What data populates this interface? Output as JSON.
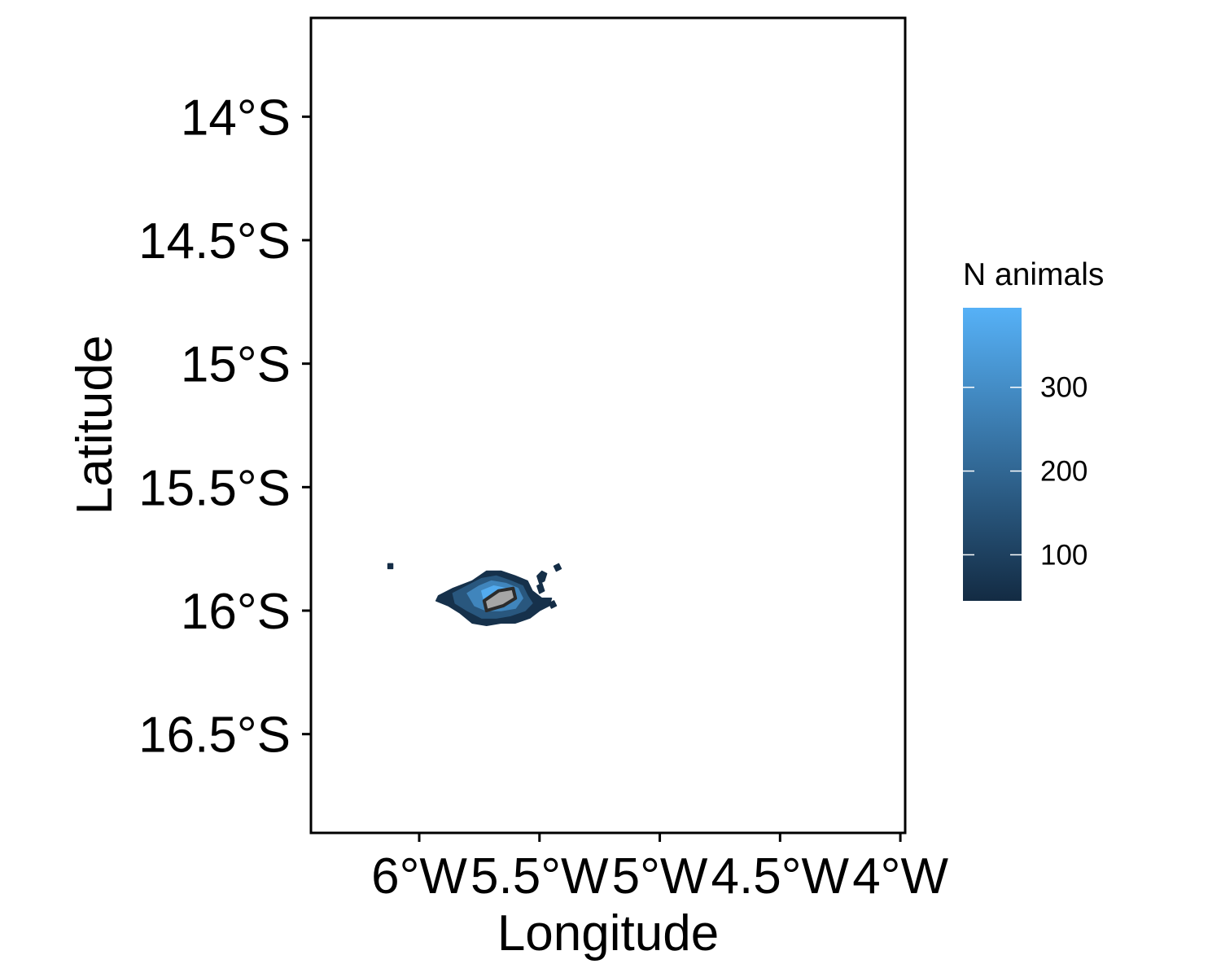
{
  "chart_data": {
    "type": "heatmap",
    "title": "",
    "xlabel": "Longitude",
    "ylabel": "Latitude",
    "xlim": [
      -6.45,
      -3.98
    ],
    "ylim": [
      -16.9,
      -13.6
    ],
    "x_ticks": [
      {
        "value": -6.0,
        "label": "6°W"
      },
      {
        "value": -5.5,
        "label": "5.5°W"
      },
      {
        "value": -5.0,
        "label": "5°W"
      },
      {
        "value": -4.5,
        "label": "4.5°W"
      },
      {
        "value": -4.0,
        "label": "4°W"
      }
    ],
    "y_ticks": [
      {
        "value": -14.0,
        "label": "14°S"
      },
      {
        "value": -14.5,
        "label": "14.5°S"
      },
      {
        "value": -15.0,
        "label": "15°S"
      },
      {
        "value": -15.5,
        "label": "15.5°S"
      },
      {
        "value": -16.0,
        "label": "16°S"
      },
      {
        "value": -16.5,
        "label": "16.5°S"
      }
    ],
    "legend": {
      "title": "N animals",
      "position": "right",
      "min": 45,
      "max": 395,
      "breaks": [
        {
          "value": 100,
          "label": "100"
        },
        {
          "value": 200,
          "label": "200"
        },
        {
          "value": 300,
          "label": "300"
        }
      ],
      "color_low": "#132B43",
      "color_high": "#56B1F7"
    },
    "density_regions": [
      {
        "value": 60,
        "polygon": [
          [
            -5.92,
            -15.94
          ],
          [
            -5.86,
            -15.91
          ],
          [
            -5.78,
            -15.88
          ],
          [
            -5.72,
            -15.84
          ],
          [
            -5.66,
            -15.84
          ],
          [
            -5.6,
            -15.86
          ],
          [
            -5.55,
            -15.88
          ],
          [
            -5.53,
            -15.92
          ],
          [
            -5.49,
            -15.95
          ],
          [
            -5.45,
            -15.95
          ],
          [
            -5.46,
            -15.98
          ],
          [
            -5.5,
            -16.0
          ],
          [
            -5.54,
            -16.03
          ],
          [
            -5.6,
            -16.05
          ],
          [
            -5.66,
            -16.05
          ],
          [
            -5.72,
            -16.06
          ],
          [
            -5.78,
            -16.05
          ],
          [
            -5.83,
            -16.01
          ],
          [
            -5.88,
            -15.98
          ],
          [
            -5.93,
            -15.96
          ]
        ]
      },
      {
        "value": 160,
        "polygon": [
          [
            -5.86,
            -15.93
          ],
          [
            -5.8,
            -15.9
          ],
          [
            -5.74,
            -15.87
          ],
          [
            -5.68,
            -15.86
          ],
          [
            -5.62,
            -15.88
          ],
          [
            -5.57,
            -15.9
          ],
          [
            -5.55,
            -15.94
          ],
          [
            -5.53,
            -15.97
          ],
          [
            -5.56,
            -16.0
          ],
          [
            -5.62,
            -16.02
          ],
          [
            -5.68,
            -16.03
          ],
          [
            -5.74,
            -16.03
          ],
          [
            -5.8,
            -16.0
          ],
          [
            -5.85,
            -15.97
          ]
        ]
      },
      {
        "value": 280,
        "polygon": [
          [
            -5.8,
            -15.93
          ],
          [
            -5.75,
            -15.9
          ],
          [
            -5.7,
            -15.88
          ],
          [
            -5.64,
            -15.89
          ],
          [
            -5.59,
            -15.91
          ],
          [
            -5.57,
            -15.95
          ],
          [
            -5.6,
            -15.99
          ],
          [
            -5.66,
            -16.0
          ],
          [
            -5.72,
            -16.0
          ],
          [
            -5.77,
            -15.98
          ]
        ]
      },
      {
        "value": 380,
        "polygon": [
          [
            -5.74,
            -15.92
          ],
          [
            -5.69,
            -15.9
          ],
          [
            -5.64,
            -15.91
          ],
          [
            -5.61,
            -15.94
          ],
          [
            -5.64,
            -15.97
          ],
          [
            -5.69,
            -15.98
          ],
          [
            -5.73,
            -15.96
          ]
        ]
      },
      {
        "value": 55,
        "polygon": [
          [
            -5.51,
            -15.86
          ],
          [
            -5.49,
            -15.84
          ],
          [
            -5.47,
            -15.85
          ],
          [
            -5.48,
            -15.88
          ],
          [
            -5.5,
            -15.89
          ]
        ]
      },
      {
        "value": 55,
        "polygon": [
          [
            -5.51,
            -15.9
          ],
          [
            -5.49,
            -15.89
          ],
          [
            -5.48,
            -15.92
          ],
          [
            -5.5,
            -15.93
          ]
        ]
      },
      {
        "value": 50,
        "polygon": [
          [
            -5.44,
            -15.82
          ],
          [
            -5.42,
            -15.81
          ],
          [
            -5.41,
            -15.83
          ],
          [
            -5.43,
            -15.84
          ]
        ]
      },
      {
        "value": 50,
        "polygon": [
          [
            -5.46,
            -15.97
          ],
          [
            -5.44,
            -15.96
          ],
          [
            -5.43,
            -15.98
          ],
          [
            -5.45,
            -15.99
          ]
        ]
      },
      {
        "value": 50,
        "polygon": [
          [
            -6.13,
            -15.81
          ],
          [
            -6.11,
            -15.81
          ],
          [
            -6.11,
            -15.83
          ],
          [
            -6.13,
            -15.83
          ]
        ]
      }
    ],
    "land_polygon": [
      [
        -5.73,
        -15.96
      ],
      [
        -5.67,
        -15.92
      ],
      [
        -5.61,
        -15.91
      ],
      [
        -5.6,
        -15.95
      ],
      [
        -5.65,
        -15.98
      ],
      [
        -5.72,
        -16.0
      ]
    ],
    "grid": false
  }
}
